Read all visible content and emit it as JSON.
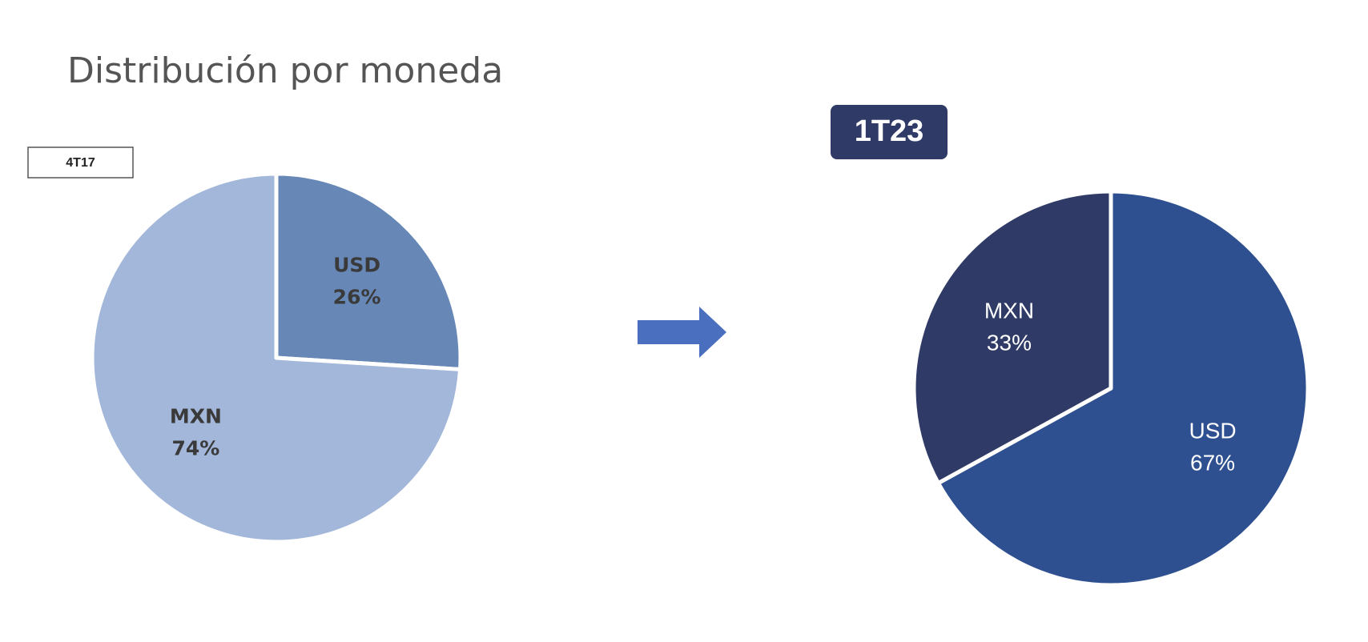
{
  "title": "Distribución por moneda",
  "chart_data": [
    {
      "type": "pie",
      "title": "4T17",
      "categories": [
        "USD",
        "MXN"
      ],
      "values": [
        26,
        74
      ],
      "value_labels": [
        "26%",
        "74%"
      ],
      "colors": [
        "#6787b7",
        "#a3b7da"
      ]
    },
    {
      "type": "pie",
      "title": "1T23",
      "categories": [
        "USD",
        "MXN"
      ],
      "values": [
        67,
        33
      ],
      "value_labels": [
        "67%",
        "33%"
      ],
      "colors": [
        "#2e5090",
        "#2f3b66"
      ]
    }
  ]
}
